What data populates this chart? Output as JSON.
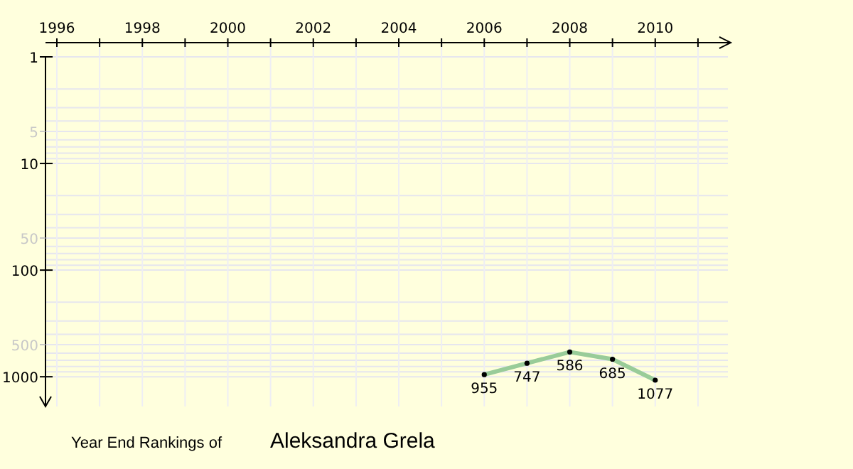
{
  "chart_data": {
    "type": "line",
    "title": "Year End Rankings of",
    "subtitle": "Aleksandra Grela",
    "x": [
      2006,
      2007,
      2008,
      2009,
      2010
    ],
    "series": [
      {
        "color": "#99cc99",
        "values": [
          955,
          747,
          586,
          685,
          1077
        ]
      }
    ],
    "xlim": [
      1996,
      2011.7
    ],
    "xticks": [
      1996,
      {
        "value": 1997,
        "label": null
      },
      1998,
      {
        "value": 1999,
        "label": null
      },
      2000,
      {
        "value": 2001,
        "label": null
      },
      2002,
      {
        "value": 2003,
        "label": null
      },
      2004,
      {
        "value": 2005,
        "label": null
      },
      2006,
      {
        "value": 2007,
        "label": null
      },
      2008,
      {
        "value": 2009,
        "label": null
      },
      2010,
      {
        "value": 2011,
        "label": null
      }
    ],
    "ylim": [
      1900,
      1
    ],
    "yticks": [
      1,
      5,
      10,
      50,
      100,
      500,
      1000
    ],
    "log": true,
    "grid": true,
    "marker": "circle",
    "data_labels": true
  }
}
